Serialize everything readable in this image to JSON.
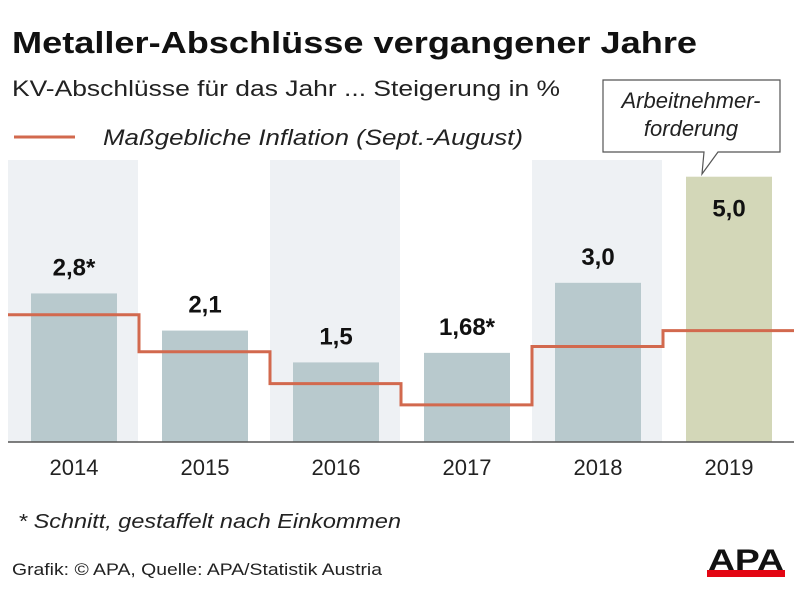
{
  "chart_data": {
    "type": "bar",
    "title": "Metaller-Abschlüsse vergangener Jahre",
    "subtitle": "KV-Abschlüsse für das Jahr ... Steigerung in %",
    "categories": [
      "2014",
      "2015",
      "2016",
      "2017",
      "2018",
      "2019"
    ],
    "series": [
      {
        "values": [
          2.8,
          2.1,
          1.5,
          1.68,
          3.0,
          5.0
        ],
        "labels": [
          "2,8*",
          "2,1",
          "1,5",
          "1,68*",
          "3,0",
          "5,0"
        ]
      },
      {
        "name": "Maßgebliche Inflation (Sept.-August)",
        "type": "step-line",
        "values": [
          2.4,
          1.7,
          1.1,
          0.7,
          1.8,
          2.1
        ]
      }
    ],
    "ylim": [
      0,
      5.3
    ],
    "grid": false,
    "legend": "top-left",
    "annotation": "Arbeitnehmer-\nforderung",
    "annotation_lines": [
      "Arbeitnehmer-",
      "forderung"
    ],
    "highlighted_category": "2019",
    "footnote": "* Schnitt, gestaffelt nach Einkommen",
    "source": "Grafik: © APA, Quelle: APA/Statistik Austria",
    "logo": "APA",
    "colors": {
      "bar": "#b8c9cd",
      "bar_highlight": "#d3d7b8",
      "panel": "#eef1f4",
      "inflation_line": "#d2694e",
      "logo_red": "#e30613"
    }
  }
}
